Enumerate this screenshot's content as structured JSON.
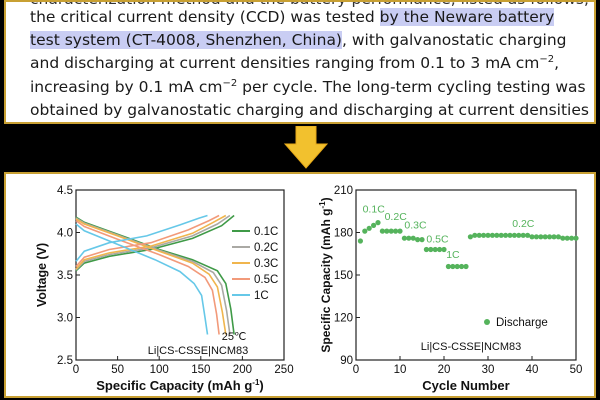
{
  "excerpt": {
    "partial_line": "characterization method and the battery performance, listed as follows,",
    "line1_pre": "the critical current density (CCD) was tested ",
    "line1_hl": "by the Neware battery",
    "line2_hl": "test system (CT-4008, Shenzhen, China)",
    "line2_post": ", with galvanostatic charging",
    "line3": "and discharging at current densities ranging from 0.1 to 3 mA cm",
    "line3_sup": "−2",
    "line3_end": ",",
    "line4_pre": "increasing by 0.1 mA cm",
    "line4_sup": "−2",
    "line4_post": " per cycle. The long-term cycling testing was",
    "line5": "obtained by galvanostatic charging and discharging at current densities"
  },
  "arrow_icon": "down-arrow-icon",
  "colors": {
    "highlight": "#c9cdf3",
    "border": "#c8a033",
    "arrow": "#f2c12e",
    "c01": "#3f9a47",
    "c02": "#aaa9a4",
    "c03": "#f0b54d",
    "c05": "#f29a7a",
    "c1": "#66c8e8",
    "discharge": "#55b35c"
  },
  "chart_data": [
    {
      "type": "line",
      "title": "",
      "xlabel": "Specific Capacity (mAh g",
      "xlabel_sup": "-1",
      "xlabel_end": ")",
      "ylabel": "Voltage (V)",
      "xlim": [
        0,
        250
      ],
      "ylim": [
        2.5,
        4.5
      ],
      "xticks": [
        "0",
        "50",
        "100",
        "150",
        "200",
        "250"
      ],
      "yticks": [
        "2.5",
        "3.0",
        "3.5",
        "4.0",
        "4.5"
      ],
      "annotations": [
        "25℃",
        "Li|CS-CSSE|NCM83"
      ],
      "legend_position": "right",
      "series": [
        {
          "name": "0.1C",
          "color_key": "c01",
          "capacity": 190,
          "charge": [
            [
              0,
              3.55
            ],
            [
              10,
              3.64
            ],
            [
              40,
              3.72
            ],
            [
              90,
              3.8
            ],
            [
              140,
              3.93
            ],
            [
              175,
              4.08
            ],
            [
              190,
              4.2
            ]
          ],
          "discharge": [
            [
              0,
              4.18
            ],
            [
              10,
              4.12
            ],
            [
              50,
              3.98
            ],
            [
              100,
              3.8
            ],
            [
              140,
              3.68
            ],
            [
              170,
              3.55
            ],
            [
              180,
              3.4
            ],
            [
              186,
              3.1
            ],
            [
              190,
              2.8
            ]
          ]
        },
        {
          "name": "0.2C",
          "color_key": "c02",
          "capacity": 185,
          "charge": [
            [
              0,
              3.56
            ],
            [
              10,
              3.66
            ],
            [
              40,
              3.74
            ],
            [
              90,
              3.82
            ],
            [
              140,
              3.96
            ],
            [
              170,
              4.1
            ],
            [
              185,
              4.2
            ]
          ],
          "discharge": [
            [
              0,
              4.17
            ],
            [
              10,
              4.11
            ],
            [
              50,
              3.97
            ],
            [
              100,
              3.79
            ],
            [
              140,
              3.66
            ],
            [
              165,
              3.53
            ],
            [
              175,
              3.38
            ],
            [
              181,
              3.08
            ],
            [
              185,
              2.8
            ]
          ]
        },
        {
          "name": "0.3C",
          "color_key": "c03",
          "capacity": 180,
          "charge": [
            [
              0,
              3.57
            ],
            [
              10,
              3.68
            ],
            [
              40,
              3.76
            ],
            [
              90,
              3.84
            ],
            [
              140,
              3.99
            ],
            [
              165,
              4.12
            ],
            [
              180,
              4.2
            ]
          ],
          "discharge": [
            [
              0,
              4.16
            ],
            [
              10,
              4.1
            ],
            [
              50,
              3.96
            ],
            [
              100,
              3.78
            ],
            [
              140,
              3.64
            ],
            [
              160,
              3.51
            ],
            [
              170,
              3.36
            ],
            [
              176,
              3.06
            ],
            [
              180,
              2.8
            ]
          ]
        },
        {
          "name": "0.5C",
          "color_key": "c05",
          "capacity": 172,
          "charge": [
            [
              0,
              3.6
            ],
            [
              10,
              3.71
            ],
            [
              40,
              3.8
            ],
            [
              90,
              3.88
            ],
            [
              135,
              4.03
            ],
            [
              160,
              4.14
            ],
            [
              172,
              4.2
            ]
          ],
          "discharge": [
            [
              0,
              4.14
            ],
            [
              10,
              4.07
            ],
            [
              50,
              3.92
            ],
            [
              100,
              3.74
            ],
            [
              135,
              3.6
            ],
            [
              155,
              3.47
            ],
            [
              164,
              3.32
            ],
            [
              169,
              3.04
            ],
            [
              172,
              2.8
            ]
          ]
        },
        {
          "name": "1C",
          "color_key": "c1",
          "capacity": 158,
          "charge": [
            [
              0,
              3.66
            ],
            [
              10,
              3.78
            ],
            [
              40,
              3.88
            ],
            [
              85,
              3.96
            ],
            [
              125,
              4.09
            ],
            [
              148,
              4.17
            ],
            [
              158,
              4.2
            ]
          ],
          "discharge": [
            [
              0,
              4.1
            ],
            [
              10,
              4.02
            ],
            [
              50,
              3.86
            ],
            [
              95,
              3.68
            ],
            [
              125,
              3.54
            ],
            [
              142,
              3.4
            ],
            [
              151,
              3.26
            ],
            [
              155,
              3.0
            ],
            [
              158,
              2.8
            ]
          ]
        }
      ]
    },
    {
      "type": "scatter",
      "title": "",
      "xlabel": "Cycle Number",
      "ylabel": "Specific Capacity (mAh g",
      "ylabel_sup": "-1",
      "ylabel_end": ")",
      "xlim": [
        0,
        50
      ],
      "ylim": [
        90,
        210
      ],
      "xticks": [
        "0",
        "10",
        "20",
        "30",
        "40",
        "50"
      ],
      "yticks": [
        "90",
        "120",
        "150",
        "180",
        "210"
      ],
      "legend": "Discharge",
      "legend_position": "bottom-right",
      "annotations": [
        "Li|CS-CSSE|NCM83"
      ],
      "rate_labels": [
        {
          "text": "0.1C",
          "x": 1.5,
          "y": 194
        },
        {
          "text": "0.2C",
          "x": 6.5,
          "y": 189
        },
        {
          "text": "0.3C",
          "x": 11,
          "y": 183
        },
        {
          "text": "0.5C",
          "x": 16,
          "y": 173
        },
        {
          "text": "1C",
          "x": 20.5,
          "y": 162
        },
        {
          "text": "0.2C",
          "x": 35.5,
          "y": 184
        }
      ],
      "series": [
        {
          "name": "Discharge",
          "color_key": "discharge",
          "x": [
            1,
            2,
            3,
            4,
            5,
            6,
            7,
            8,
            9,
            10,
            11,
            12,
            13,
            14,
            15,
            16,
            17,
            18,
            19,
            20,
            21,
            22,
            23,
            24,
            25,
            26,
            27,
            28,
            29,
            30,
            31,
            32,
            33,
            34,
            35,
            36,
            37,
            38,
            39,
            40,
            41,
            42,
            43,
            44,
            45,
            46,
            47,
            48,
            49,
            50
          ],
          "y": [
            174,
            181,
            183,
            185,
            187,
            181,
            181,
            181,
            181,
            181,
            176,
            176,
            176,
            175,
            175,
            168,
            168,
            168,
            168,
            168,
            156,
            156,
            156,
            156,
            156,
            177,
            178,
            178,
            178,
            178,
            178,
            178,
            178,
            178,
            178,
            178,
            178,
            178,
            178,
            177,
            177,
            177,
            177,
            177,
            177,
            177,
            176,
            176,
            176,
            176
          ]
        }
      ]
    }
  ]
}
